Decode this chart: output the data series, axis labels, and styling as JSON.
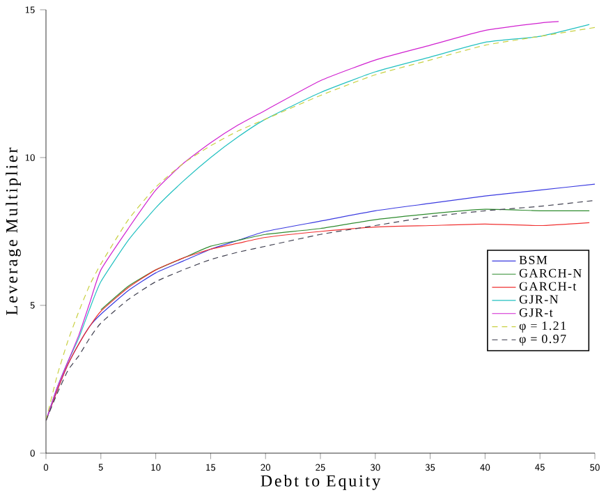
{
  "chart_data": {
    "type": "line",
    "xlabel": "Debt to Equity",
    "ylabel": "Leverage Multiplier",
    "x": [
      0,
      1,
      2,
      3,
      4,
      5,
      7.5,
      10,
      12.5,
      15,
      17.5,
      20,
      25,
      30,
      35,
      40,
      45,
      50
    ],
    "xlim": [
      0,
      50
    ],
    "xticks": [
      0,
      5,
      10,
      15,
      20,
      25,
      30,
      35,
      40,
      45,
      50
    ],
    "ylim": [
      0,
      15
    ],
    "yticks": [
      0,
      5,
      10,
      15
    ],
    "legend": "right",
    "line_style": "solid",
    "series": [
      {
        "name": "BSM",
        "color": "#3a3ae0",
        "values": [
          1.1,
          2.1,
          3.0,
          3.7,
          4.3,
          4.7,
          5.5,
          6.1,
          6.5,
          6.9,
          7.2,
          7.5,
          7.85,
          8.2,
          8.45,
          8.7,
          8.9,
          9.1
        ]
      },
      {
        "name": "GARCH-N",
        "color": "#2e8b2e",
        "x": [
          5,
          7.5,
          10,
          12.5,
          15,
          17.5,
          20,
          25,
          30,
          35,
          40,
          45,
          49.5
        ],
        "values": [
          4.85,
          5.65,
          6.2,
          6.6,
          7.0,
          7.2,
          7.4,
          7.6,
          7.9,
          8.1,
          8.25,
          8.2,
          8.2
        ]
      },
      {
        "name": "GARCH-t",
        "color": "#f03030",
        "x": [
          0,
          1,
          2,
          3,
          4,
          5,
          7.5,
          10,
          12.5,
          15,
          17.5,
          20,
          25,
          30,
          35,
          40,
          45,
          49.5
        ],
        "values": [
          1.1,
          2.1,
          3.0,
          3.7,
          4.3,
          4.8,
          5.6,
          6.2,
          6.6,
          6.9,
          7.1,
          7.3,
          7.5,
          7.65,
          7.7,
          7.75,
          7.7,
          7.8
        ]
      },
      {
        "name": "GJR-N",
        "color": "#20c0c0",
        "x": [
          0,
          1,
          2,
          3,
          4,
          5,
          7.5,
          10,
          12.5,
          15,
          17.5,
          20,
          25,
          30,
          35,
          40,
          45,
          49.5
        ],
        "values": [
          1.1,
          2.2,
          3.1,
          3.9,
          4.9,
          5.8,
          7.2,
          8.3,
          9.2,
          10.0,
          10.7,
          11.3,
          12.2,
          12.9,
          13.4,
          13.9,
          14.1,
          14.5
        ]
      },
      {
        "name": "GJR-t",
        "color": "#d020d0",
        "x": [
          0,
          1,
          2,
          3,
          4,
          5,
          7.5,
          10,
          12.5,
          15,
          17.5,
          20,
          25,
          30,
          35,
          40,
          45,
          46.7
        ],
        "values": [
          1.1,
          2.2,
          3.1,
          4.0,
          5.1,
          6.2,
          7.6,
          8.9,
          9.8,
          10.5,
          11.1,
          11.6,
          12.6,
          13.3,
          13.8,
          14.3,
          14.55,
          14.6
        ]
      },
      {
        "name": "φ = 1.21",
        "color": "#c8d040",
        "line_style": "dashed",
        "values": [
          1.1,
          2.6,
          3.8,
          4.8,
          5.7,
          6.4,
          7.9,
          9.0,
          9.8,
          10.4,
          10.9,
          11.3,
          12.1,
          12.8,
          13.3,
          13.8,
          14.1,
          14.4
        ]
      },
      {
        "name": "φ = 0.97",
        "color": "#404050",
        "line_style": "dashed",
        "values": [
          1.1,
          2.0,
          2.8,
          3.3,
          3.9,
          4.4,
          5.2,
          5.8,
          6.2,
          6.55,
          6.8,
          7.0,
          7.4,
          7.7,
          8.0,
          8.2,
          8.35,
          8.55
        ]
      }
    ]
  }
}
